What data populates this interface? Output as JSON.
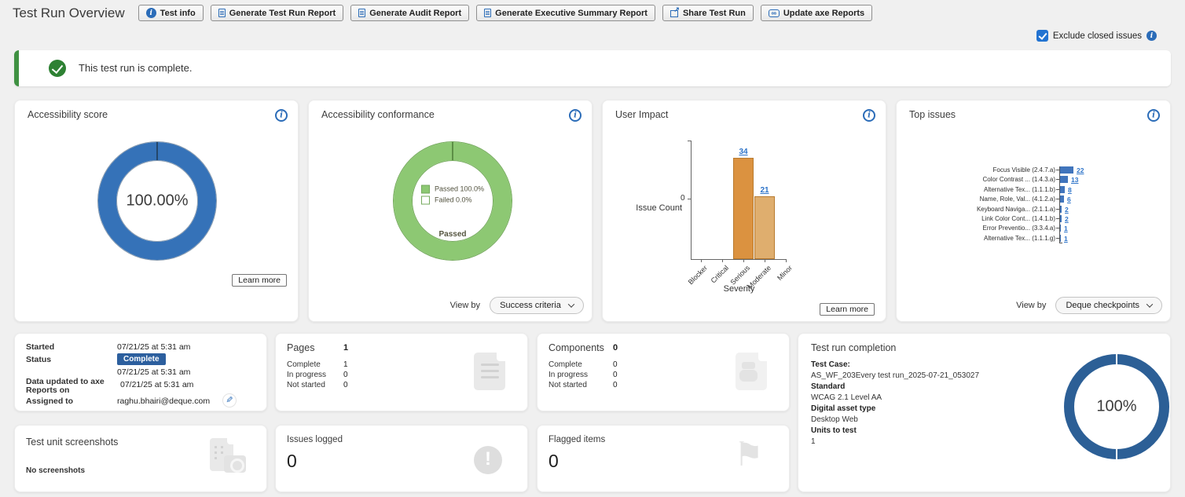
{
  "page": {
    "title": "Test Run Overview"
  },
  "toolbar": {
    "buttons": [
      {
        "label": "Test info"
      },
      {
        "label": "Generate Test Run Report"
      },
      {
        "label": "Generate Audit Report"
      },
      {
        "label": "Generate Executive Summary Report"
      },
      {
        "label": "Share Test Run"
      },
      {
        "label": "Update axe Reports"
      }
    ]
  },
  "filters": {
    "exclude_closed": {
      "label": "Exclude closed issues",
      "checked": true
    }
  },
  "banner": {
    "message": "This test run is complete."
  },
  "score_card": {
    "title": "Accessibility score",
    "center_value": "100.00%",
    "learn_more_label": "Learn more"
  },
  "conformance_card": {
    "title": "Accessibility conformance",
    "legend": [
      {
        "label": "Passed 100.0%"
      },
      {
        "label": "Failed 0.0%"
      }
    ],
    "segment_label": "Passed",
    "view_by_label": "View by",
    "dropdown_value": "Success criteria"
  },
  "user_impact_card": {
    "title": "User Impact",
    "ylabel": "Issue Count",
    "xlabel": "Severity",
    "y_tick": "0",
    "learn_more_label": "Learn more"
  },
  "top_issues_card": {
    "title": "Top issues",
    "view_by_label": "View by",
    "dropdown_value": "Deque checkpoints"
  },
  "chart_data": [
    {
      "type": "bar",
      "title": "User Impact",
      "xlabel": "Severity",
      "ylabel": "Issue Count",
      "categories": [
        "Blocker",
        "Critical",
        "Serious",
        "Moderate",
        "Minor"
      ],
      "values": [
        0,
        0,
        34,
        21,
        0
      ],
      "bar_colors": [
        "#db9240",
        "#db9240",
        "#db9240",
        "#dfae6e",
        "#db9240"
      ],
      "ylim_note": "only 0 tick shown"
    },
    {
      "type": "bar",
      "orientation": "horizontal",
      "title": "Top issues",
      "categories": [
        "Focus Visible (2.4.7.a)",
        "Color Contrast ... (1.4.3.a)",
        "Alternative Tex... (1.1.1.b)",
        "Name, Role, Val... (4.1.2.a)",
        "Keyboard Naviga... (2.1.1.a)",
        "Link Color Cont... (1.4.1.b)",
        "Error Preventio... (3.3.4.a)",
        "Alternative Tex... (1.1.1.g)"
      ],
      "values": [
        22,
        13,
        8,
        6,
        2,
        2,
        1,
        1
      ],
      "bar_color": "#4175bc"
    },
    {
      "type": "pie",
      "title": "Accessibility score",
      "slices": [
        {
          "label": "Score",
          "value": 100.0
        }
      ],
      "center_label": "100.00%",
      "color": "#3572b8"
    },
    {
      "type": "pie",
      "title": "Accessibility conformance",
      "slices": [
        {
          "label": "Passed",
          "value": 100.0
        },
        {
          "label": "Failed",
          "value": 0.0
        }
      ],
      "colors": [
        "#8dc873",
        "#ffffff"
      ]
    },
    {
      "type": "pie",
      "title": "Test run completion",
      "slices": [
        {
          "label": "Complete",
          "value": 100.0
        }
      ],
      "center_label": "100%",
      "color": "#2c5f96"
    }
  ],
  "details_card": {
    "rows": [
      {
        "label": "Started",
        "value": "07/21/25 at 5:31 am"
      },
      {
        "label": "Status",
        "badge": "Complete",
        "value": "07/21/25 at 5:31 am"
      },
      {
        "label": "Data updated to axe Reports on",
        "value": "07/21/25 at 5:31 am"
      },
      {
        "label": "Assigned to",
        "value": "raghu.bhairi@deque.com"
      }
    ]
  },
  "pages_card": {
    "title": "Pages",
    "total": "1",
    "rows": [
      {
        "label": "Complete",
        "value": "1"
      },
      {
        "label": "In progress",
        "value": "0"
      },
      {
        "label": "Not started",
        "value": "0"
      }
    ]
  },
  "components_card": {
    "title": "Components",
    "total": "0",
    "rows": [
      {
        "label": "Complete",
        "value": "0"
      },
      {
        "label": "In progress",
        "value": "0"
      },
      {
        "label": "Not started",
        "value": "0"
      }
    ]
  },
  "completion_card": {
    "title": "Test run completion",
    "fields": [
      {
        "label": "Test Case:",
        "value": "AS_WF_203Every test run_2025-07-21_053027"
      },
      {
        "label": "Standard",
        "value": "WCAG 2.1 Level AA"
      },
      {
        "label": "Digital asset type",
        "value": "Desktop Web"
      },
      {
        "label": "Units to test",
        "value": "1"
      }
    ],
    "percent": "100%"
  },
  "screenshots_card": {
    "title": "Test unit screenshots",
    "empty_message": "No screenshots"
  },
  "issues_card": {
    "title": "Issues logged",
    "count": "0"
  },
  "flagged_card": {
    "title": "Flagged items",
    "count": "0"
  },
  "colors": {
    "accent_blue": "#2b6cb8",
    "donut_blue": "#3572b8",
    "ring_navy": "#2c5f96",
    "conformance_green": "#8dc873",
    "banner_green": "#3f9142",
    "bar_blue": "#4175bc",
    "serious_orange": "#db9240",
    "moderate_orange": "#dfae6e",
    "badge_blue": "#2c5f9e"
  }
}
